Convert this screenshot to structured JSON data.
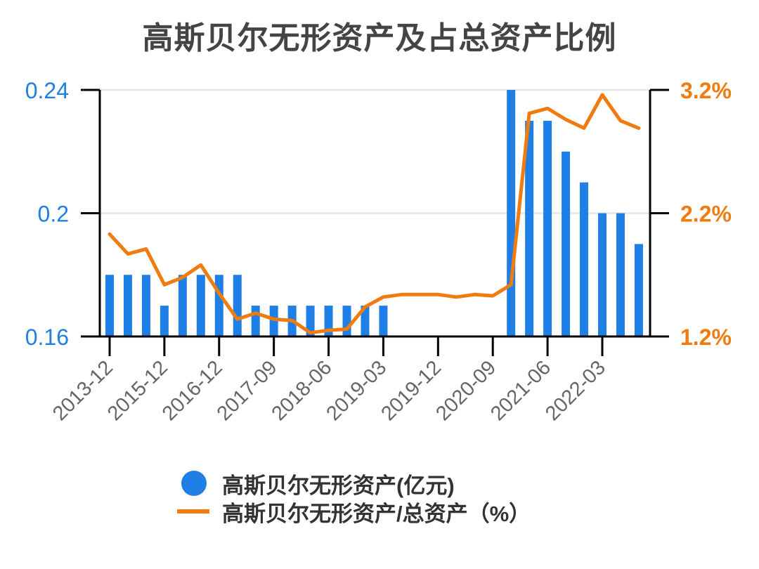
{
  "title": "高斯贝尔无形资产及占总资产比例",
  "colors": {
    "bar": "#1e7fe6",
    "line": "#f07c10",
    "axis": "#000000",
    "grid": "#e6e6e6",
    "tick_text": "#666666",
    "title": "#444444"
  },
  "legend": {
    "items": [
      {
        "label": "高斯贝尔无形资产(亿元)",
        "marker": "circle",
        "color": "#1e7fe6"
      },
      {
        "label": "高斯贝尔无形资产/总资产（%）",
        "marker": "line",
        "color": "#f07c10"
      }
    ]
  },
  "chart_data": {
    "type": "bar+line",
    "title": "高斯贝尔无形资产及占总资产比例",
    "x_tick_labels": [
      "2013-12",
      "2015-12",
      "2016-12",
      "2017-09",
      "2018-06",
      "2019-03",
      "2019-12",
      "2020-09",
      "2021-06",
      "2022-03"
    ],
    "x_tick_every": 3,
    "num_points": 30,
    "left_axis": {
      "label": "亿元",
      "ticks": [
        "0.16",
        "0.2",
        "0.24"
      ],
      "ylim": [
        0.16,
        0.24
      ],
      "color": "#1e7fe6"
    },
    "right_axis": {
      "label": "%",
      "ticks": [
        "1.2%",
        "2.2%",
        "3.2%"
      ],
      "ylim": [
        1.2,
        3.2
      ],
      "color": "#f07c10"
    },
    "series": [
      {
        "name": "高斯贝尔无形资产(亿元)",
        "type": "bar",
        "axis": "left",
        "values": [
          0.18,
          0.18,
          0.18,
          0.17,
          0.18,
          0.18,
          0.18,
          0.18,
          0.17,
          0.17,
          0.17,
          0.17,
          0.17,
          0.17,
          0.17,
          0.17,
          null,
          null,
          null,
          null,
          null,
          null,
          0.24,
          0.23,
          0.23,
          0.22,
          0.21,
          0.2,
          0.2,
          0.19
        ]
      },
      {
        "name": "高斯贝尔无形资产/总资产（%）",
        "type": "line",
        "axis": "right",
        "values": [
          2.03,
          1.87,
          1.91,
          1.62,
          1.68,
          1.78,
          1.55,
          1.34,
          1.39,
          1.34,
          1.33,
          1.23,
          1.25,
          1.26,
          1.44,
          1.52,
          1.54,
          1.54,
          1.54,
          1.52,
          1.54,
          1.53,
          1.62,
          3.01,
          3.05,
          2.96,
          2.89,
          3.16,
          2.95,
          2.89
        ]
      }
    ],
    "grid": true,
    "legend_position": "bottom"
  }
}
